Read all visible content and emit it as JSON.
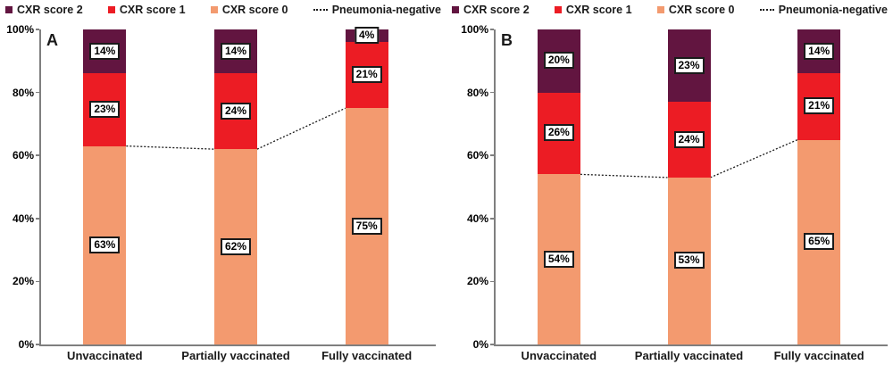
{
  "colors": {
    "cxr_score_2": "#621540",
    "cxr_score_1": "#ec1c24",
    "cxr_score_0": "#f39a6f",
    "negative_line": "#1a1a1a",
    "axis": "#7f7f7f"
  },
  "legend": [
    {
      "label": "CXR score 2",
      "marker": "square",
      "color": "#621540"
    },
    {
      "label": "CXR score 1",
      "marker": "square",
      "color": "#ec1c24"
    },
    {
      "label": "CXR score 0",
      "marker": "square",
      "color": "#f39a6f"
    },
    {
      "label": "Pneumonia-negative",
      "marker": "dotted-line",
      "color": "#1a1a1a"
    }
  ],
  "chart_data": [
    {
      "type": "bar",
      "stacked": true,
      "panel_label": "A",
      "categories": [
        "Unvaccinated",
        "Partially vaccinated",
        "Fully vaccinated"
      ],
      "series": [
        {
          "name": "CXR score 0",
          "color": "#f39a6f",
          "values": [
            63,
            62,
            75
          ]
        },
        {
          "name": "CXR score 1",
          "color": "#ec1c24",
          "values": [
            23,
            24,
            21
          ]
        },
        {
          "name": "CXR score 2",
          "color": "#621540",
          "values": [
            14,
            14,
            4
          ]
        }
      ],
      "line_series": {
        "name": "Pneumonia-negative",
        "values": [
          63,
          62,
          75
        ]
      },
      "ylim": [
        0,
        100
      ],
      "yticks": [
        "0%",
        "20%",
        "40%",
        "60%",
        "80%",
        "100%"
      ],
      "grid": false,
      "legend_position": "top"
    },
    {
      "type": "bar",
      "stacked": true,
      "panel_label": "B",
      "categories": [
        "Unvaccinated",
        "Partially vaccinated",
        "Fully vaccinated"
      ],
      "series": [
        {
          "name": "CXR score 0",
          "color": "#f39a6f",
          "values": [
            54,
            53,
            65
          ]
        },
        {
          "name": "CXR score 1",
          "color": "#ec1c24",
          "values": [
            26,
            24,
            21
          ]
        },
        {
          "name": "CXR score 2",
          "color": "#621540",
          "values": [
            20,
            23,
            14
          ]
        }
      ],
      "line_series": {
        "name": "Pneumonia-negative",
        "values": [
          54,
          53,
          65
        ]
      },
      "ylim": [
        0,
        100
      ],
      "yticks": [
        "0%",
        "20%",
        "40%",
        "60%",
        "80%",
        "100%"
      ],
      "grid": false,
      "legend_position": "top"
    }
  ]
}
